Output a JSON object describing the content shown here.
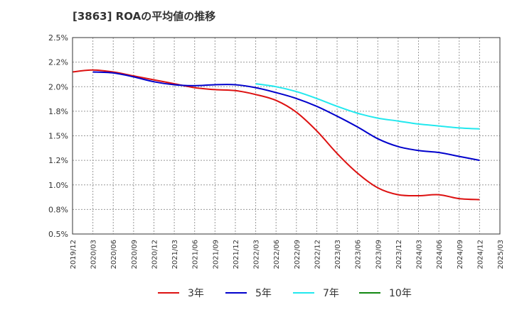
{
  "chart_data": {
    "type": "line",
    "title": "[3863]  ROAの平均値の推移",
    "xlabel": "",
    "ylabel": "",
    "x_categories": [
      "2019/12",
      "2020/03",
      "2020/06",
      "2020/09",
      "2020/12",
      "2021/03",
      "2021/06",
      "2021/09",
      "2021/12",
      "2022/03",
      "2022/06",
      "2022/09",
      "2022/12",
      "2023/03",
      "2023/06",
      "2023/09",
      "2023/12",
      "2024/03",
      "2024/06",
      "2024/09",
      "2024/12",
      "2025/03"
    ],
    "yticks": [
      "0.5%",
      "0.8%",
      "1.0%",
      "1.2%",
      "1.5%",
      "1.8%",
      "2.0%",
      "2.2%",
      "2.5%"
    ],
    "ylim": [
      0.5,
      2.5
    ],
    "grid": true,
    "legend_position": "bottom",
    "series": [
      {
        "name": "3年",
        "color": "#dd1111",
        "values": [
          2.15,
          2.17,
          2.15,
          2.11,
          2.07,
          2.03,
          1.99,
          1.97,
          1.96,
          1.92,
          1.86,
          1.74,
          1.55,
          1.32,
          1.12,
          0.97,
          0.9,
          0.89,
          0.9,
          0.86,
          0.85,
          null
        ]
      },
      {
        "name": "5年",
        "color": "#0000cc",
        "values": [
          null,
          2.15,
          2.14,
          2.1,
          2.05,
          2.02,
          2.01,
          2.02,
          2.02,
          1.99,
          1.94,
          1.88,
          1.8,
          1.7,
          1.59,
          1.47,
          1.39,
          1.35,
          1.33,
          1.29,
          1.25,
          null
        ]
      },
      {
        "name": "7年",
        "color": "#22e8ee",
        "values": [
          null,
          null,
          null,
          null,
          null,
          null,
          null,
          null,
          null,
          2.03,
          2.0,
          1.95,
          1.88,
          1.8,
          1.73,
          1.68,
          1.65,
          1.62,
          1.6,
          1.58,
          1.57,
          null
        ]
      },
      {
        "name": "10年",
        "color": "#118811",
        "values": []
      }
    ]
  }
}
